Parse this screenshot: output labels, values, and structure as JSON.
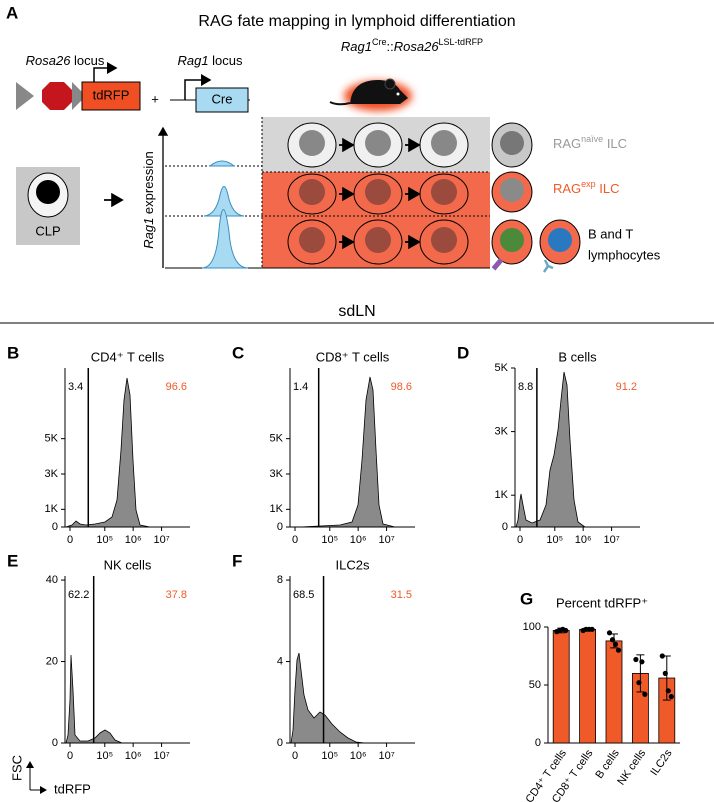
{
  "panel_a": {
    "label": "A",
    "title": "RAG fate mapping in lymphoid differentiation",
    "rosa26_locus": {
      "gene": "Rosa26",
      "text": " locus"
    },
    "tdrfp": "tdRFP",
    "plus": "+",
    "rag1_locus": {
      "gene": "Rag1",
      "text": " locus"
    },
    "cre": "Cre",
    "mouse": {
      "gene1": "Rag1",
      "sup1": "Cre",
      "sep": "::",
      "gene2": "Rosa26",
      "sup2": "LSL-tdRFP"
    },
    "clp": "CLP",
    "expression_axis": {
      "gene": "Rag1",
      "text": " expression"
    },
    "rag_naive": {
      "base": "RAG",
      "sup": "naïve",
      "text": " ILC"
    },
    "rag_exp": {
      "base": "RAG",
      "sup": "exp",
      "text": " ILC"
    },
    "lymphocytes": [
      "B and T",
      "lymphocytes"
    ]
  },
  "section": "sdLN",
  "histograms": [
    {
      "label": "B",
      "title": "CD4⁺ T cells",
      "left_percent": 3.4,
      "right_percent": 96.6,
      "gate": 25000,
      "ylim": [
        0,
        9000
      ],
      "yticks": [
        0,
        {
          "value": 1000,
          "label": "1K"
        },
        {
          "value": 3000,
          "label": "3K"
        },
        {
          "value": 5000,
          "label": "5K"
        }
      ],
      "xlim": [
        -5000,
        100000000
      ],
      "xticks": [
        0,
        {
          "value": 100000,
          "label": "10⁵"
        },
        {
          "value": 1000000,
          "label": "10⁶"
        },
        {
          "value": 10000000,
          "label": "10⁷"
        }
      ]
    },
    {
      "label": "C",
      "title": "CD8⁺ T cells",
      "left_percent": 1.4,
      "right_percent": 98.6,
      "gate": 40000,
      "ylim": [
        0,
        9000
      ],
      "yticks": [
        0,
        {
          "value": 1000,
          "label": "1K"
        },
        {
          "value": 3000,
          "label": "3K"
        },
        {
          "value": 5000,
          "label": "5K"
        }
      ],
      "xlim": [
        -5000,
        100000000
      ],
      "xticks": [
        0,
        {
          "value": 100000,
          "label": "10⁵"
        },
        {
          "value": 1000000,
          "label": "10⁶"
        },
        {
          "value": 10000000,
          "label": "10⁷"
        }
      ]
    },
    {
      "label": "D",
      "title": "B cells",
      "left_percent": 8.8,
      "right_percent": 91.2,
      "gate": 22000,
      "ylim": [
        0,
        5000
      ],
      "yticks": [
        0,
        {
          "value": 1000,
          "label": "1K"
        },
        {
          "value": 3000,
          "label": "3K"
        },
        {
          "value": 5000,
          "label": "5K"
        }
      ],
      "xlim": [
        -5000,
        100000000
      ],
      "xticks": [
        0,
        {
          "value": 100000,
          "label": "10⁵"
        },
        {
          "value": 1000000,
          "label": "10⁶"
        },
        {
          "value": 10000000,
          "label": "10⁷"
        }
      ]
    },
    {
      "label": "E",
      "title": "NK cells",
      "left_percent": 62.2,
      "right_percent": 37.8,
      "gate": 40000,
      "ylim": [
        0,
        41
      ],
      "yticks": [
        0,
        20,
        40
      ],
      "xlim": [
        -5000,
        100000000
      ],
      "xticks": [
        0,
        {
          "value": 100000,
          "label": "10⁵"
        },
        {
          "value": 1000000,
          "label": "10⁶"
        },
        {
          "value": 10000000,
          "label": "10⁷"
        }
      ]
    },
    {
      "label": "F",
      "title": "ILC2s",
      "left_percent": 68.5,
      "right_percent": 31.5,
      "gate": 60000,
      "ylim": [
        0,
        8.2
      ],
      "yticks": [
        0,
        4,
        8
      ],
      "xlim": [
        -5000,
        100000000
      ],
      "xticks": [
        0,
        {
          "value": 100000,
          "label": "10⁵"
        },
        {
          "value": 1000000,
          "label": "10⁶"
        },
        {
          "value": 10000000,
          "label": "10⁷"
        }
      ]
    }
  ],
  "axis_labels": {
    "y": "FSC",
    "x": "tdRFP"
  },
  "chart_data": {
    "type": "bar",
    "label": "G",
    "title": "Percent tdRFP⁺",
    "categories": [
      "CD4⁺ T cells",
      "CD8⁺ T cells",
      "B cells",
      "NK cells",
      "ILC2s"
    ],
    "values": [
      97,
      98,
      88,
      60,
      56
    ],
    "errors": [
      2,
      1,
      6,
      16,
      19
    ],
    "points": [
      [
        96,
        97,
        98,
        97
      ],
      [
        97,
        98,
        98,
        98
      ],
      [
        95,
        89,
        85,
        80
      ],
      [
        72,
        52,
        70,
        42
      ],
      [
        75,
        60,
        45,
        40
      ]
    ],
    "color": "#f05a28",
    "ylim": [
      0,
      100
    ],
    "yticks": [
      0,
      50,
      100
    ]
  }
}
